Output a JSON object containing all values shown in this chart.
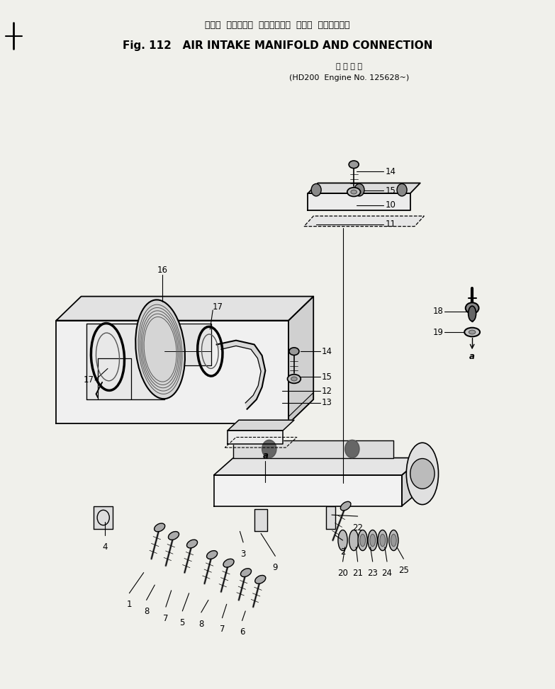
{
  "title_japanese": "エアー  インテーク  マニホールド  および  コネクション",
  "title_english": "Fig. 112   AIR INTAKE MANIFOLD AND CONNECTION",
  "subtitle_japanese": "適 用 号 機",
  "subtitle_english": "(HD200  Engine No. 125628~)",
  "bg_color": "#f0f0eb",
  "text_color": "#000000",
  "fig_width": 7.83,
  "fig_height": 9.73
}
